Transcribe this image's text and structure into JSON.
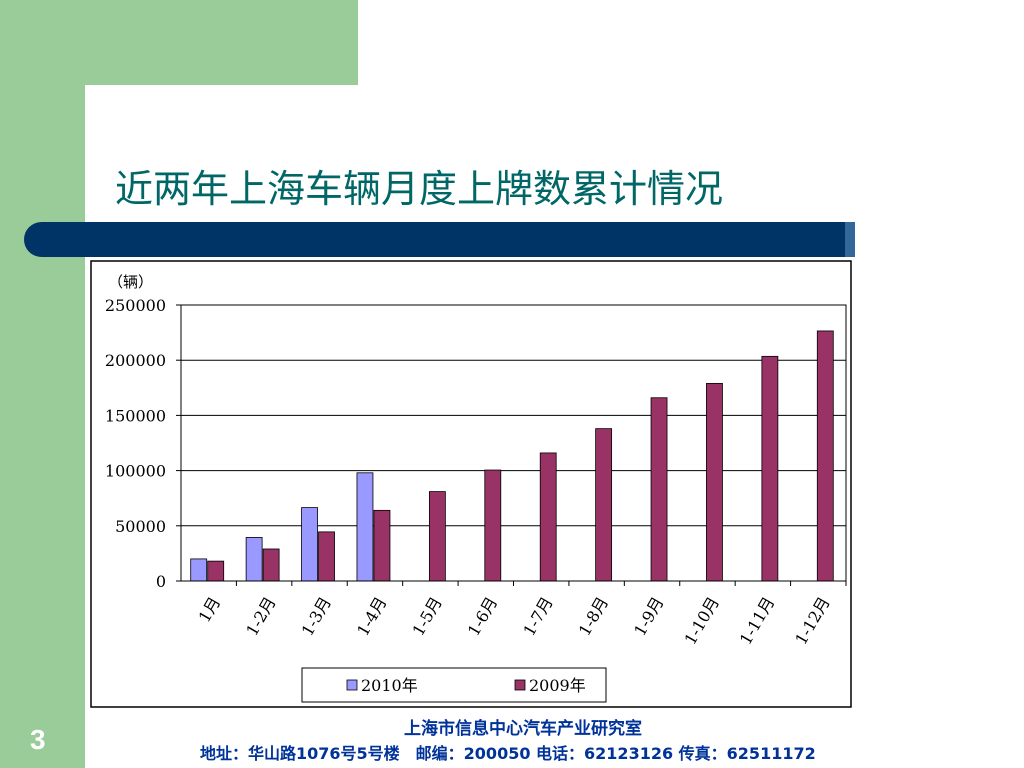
{
  "slide": {
    "title": "近两年上海车辆月度上牌数累计情况",
    "page_number": "3",
    "footer_org": "上海市信息中心汽车产业研究室",
    "footer_address": "地址：华山路1076号5号楼　邮编：200050  电话：62123126  传真：62511172"
  },
  "chart_data": {
    "type": "bar",
    "unit_label": "（辆）",
    "categories": [
      "1月",
      "1-2月",
      "1-3月",
      "1-4月",
      "1-5月",
      "1-6月",
      "1-7月",
      "1-8月",
      "1-9月",
      "1-10月",
      "1-11月",
      "1-12月"
    ],
    "series": [
      {
        "name": "2010年",
        "color": "#9999ff",
        "values": [
          20000,
          39500,
          66500,
          98000,
          null,
          null,
          null,
          null,
          null,
          null,
          null,
          null
        ]
      },
      {
        "name": "2009年",
        "color": "#993366",
        "values": [
          18000,
          29000,
          44500,
          64000,
          81000,
          100500,
          116000,
          138000,
          166000,
          179000,
          203500,
          226500
        ]
      }
    ],
    "yticks": [
      "0",
      "50000",
      "100000",
      "150000",
      "200000",
      "250000"
    ],
    "ylim": [
      0,
      250000
    ],
    "grid": true,
    "legend_position": "bottom"
  }
}
